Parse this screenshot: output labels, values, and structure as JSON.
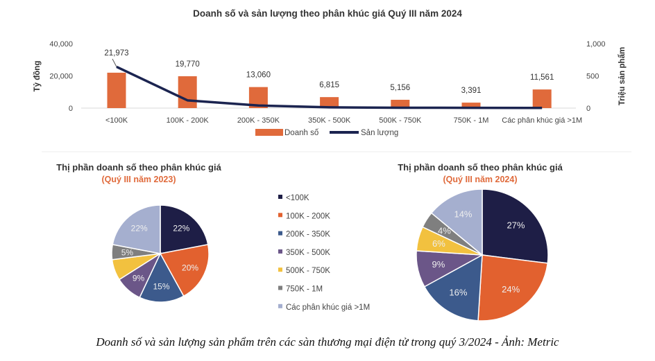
{
  "colors": {
    "bar": "#E06A3B",
    "line": "#1B2450",
    "pie": [
      "#1E1E46",
      "#E2612F",
      "#3C5A8C",
      "#6B5688",
      "#F2C13F",
      "#7F7F7F",
      "#A5AFCF"
    ]
  },
  "chart_data": [
    {
      "type": "bar",
      "title": "Doanh số và sản lượng theo phân khúc giá Quý III năm 2024",
      "categories": [
        "<100K",
        "100K - 200K",
        "200K - 350K",
        "350K - 500K",
        "500K - 750K",
        "750K - 1M",
        "Các phân khúc giá >1M"
      ],
      "series": [
        {
          "name": "Doanh số",
          "type": "bar",
          "axis": "left",
          "values": [
            21973,
            19770,
            13060,
            6815,
            5156,
            3391,
            11561
          ],
          "labels": [
            "21,973",
            "19,770",
            "13,060",
            "6,815",
            "5,156",
            "3,391",
            "11,561"
          ]
        },
        {
          "name": "Sản lượng",
          "type": "line",
          "axis": "right",
          "values": [
            640,
            120,
            40,
            12,
            6,
            4,
            3
          ]
        }
      ],
      "ylabel": "Tỷ đồng",
      "y2label": "Triệu sản phẩm",
      "ylim": [
        0,
        40000
      ],
      "y2lim": [
        0,
        1000
      ],
      "yticks": [
        "0",
        "20,000",
        "40,000"
      ],
      "y2ticks": [
        "0",
        "500",
        "1,000"
      ],
      "legend": "bottom"
    },
    {
      "type": "pie",
      "title": "Thị phần doanh số theo phân khúc giá",
      "subtitle": "(Quý III năm 2023)",
      "categories": [
        "<100K",
        "100K - 200K",
        "200K - 350K",
        "350K - 500K",
        "500K - 750K",
        "750K - 1M",
        "Các phân khúc giá >1M"
      ],
      "values": [
        22,
        20,
        15,
        9,
        7,
        5,
        22
      ],
      "labels": [
        "22%",
        "20%",
        "15%",
        "9%",
        "",
        "5%",
        "22%"
      ]
    },
    {
      "type": "pie",
      "title": "Thị phần doanh số theo phân khúc giá",
      "subtitle": "(Quý III năm 2024)",
      "categories": [
        "<100K",
        "100K - 200K",
        "200K - 350K",
        "350K - 500K",
        "500K - 750K",
        "750K - 1M",
        "Các phân khúc giá >1M"
      ],
      "values": [
        27,
        24,
        16,
        9,
        6,
        4,
        14
      ],
      "labels": [
        "27%",
        "24%",
        "16%",
        "9%",
        "6%",
        "4%",
        "14%"
      ]
    }
  ],
  "caption": "Doanh số và sản lượng sản phẩm trên các sàn thương mại điện tử trong quý 3/2024 - Ảnh: Metric"
}
